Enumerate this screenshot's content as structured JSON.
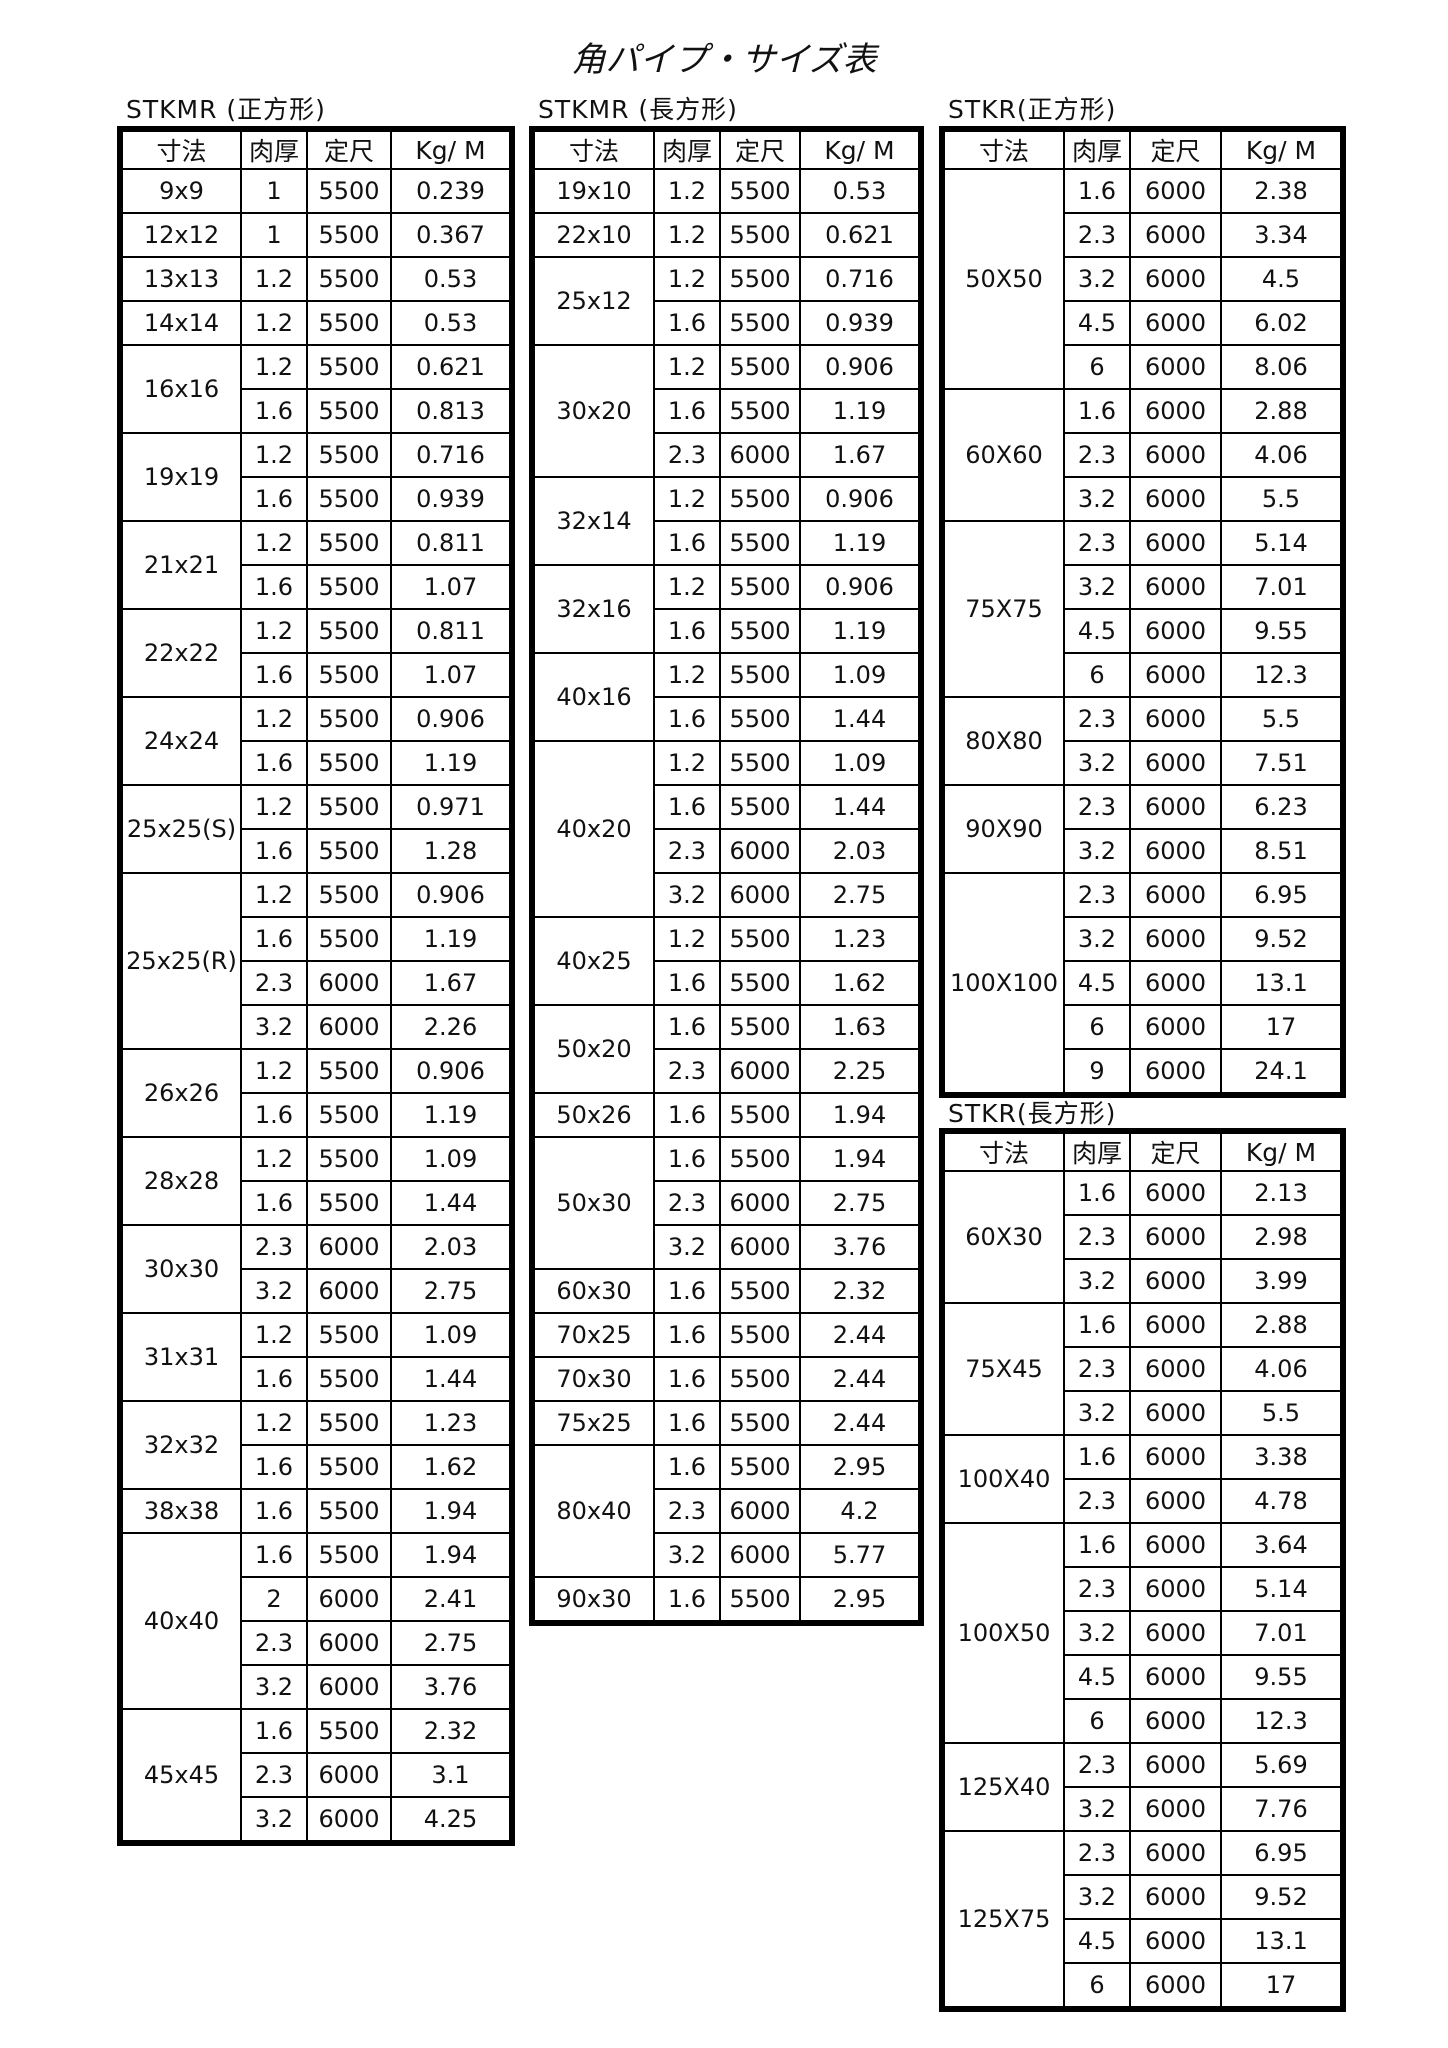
{
  "title": "角パイプ・サイズ表",
  "headers": [
    "寸法",
    "肉厚",
    "定尺",
    "Kg/ M"
  ],
  "tables": [
    {
      "label": "STKMR (正方形)",
      "groups": [
        {
          "size": "9x9",
          "rows": [
            [
              "1",
              "5500",
              "0.239"
            ]
          ]
        },
        {
          "size": "12x12",
          "rows": [
            [
              "1",
              "5500",
              "0.367"
            ]
          ]
        },
        {
          "size": "13x13",
          "rows": [
            [
              "1.2",
              "5500",
              "0.53"
            ]
          ]
        },
        {
          "size": "14x14",
          "rows": [
            [
              "1.2",
              "5500",
              "0.53"
            ]
          ]
        },
        {
          "size": "16x16",
          "rows": [
            [
              "1.2",
              "5500",
              "0.621"
            ],
            [
              "1.6",
              "5500",
              "0.813"
            ]
          ]
        },
        {
          "size": "19x19",
          "rows": [
            [
              "1.2",
              "5500",
              "0.716"
            ],
            [
              "1.6",
              "5500",
              "0.939"
            ]
          ]
        },
        {
          "size": "21x21",
          "rows": [
            [
              "1.2",
              "5500",
              "0.811"
            ],
            [
              "1.6",
              "5500",
              "1.07"
            ]
          ]
        },
        {
          "size": "22x22",
          "rows": [
            [
              "1.2",
              "5500",
              "0.811"
            ],
            [
              "1.6",
              "5500",
              "1.07"
            ]
          ]
        },
        {
          "size": "24x24",
          "rows": [
            [
              "1.2",
              "5500",
              "0.906"
            ],
            [
              "1.6",
              "5500",
              "1.19"
            ]
          ]
        },
        {
          "size": "25x25(S)",
          "rows": [
            [
              "1.2",
              "5500",
              "0.971"
            ],
            [
              "1.6",
              "5500",
              "1.28"
            ]
          ]
        },
        {
          "size": "25x25(R)",
          "rows": [
            [
              "1.2",
              "5500",
              "0.906"
            ],
            [
              "1.6",
              "5500",
              "1.19"
            ],
            [
              "2.3",
              "6000",
              "1.67"
            ],
            [
              "3.2",
              "6000",
              "2.26"
            ]
          ]
        },
        {
          "size": "26x26",
          "rows": [
            [
              "1.2",
              "5500",
              "0.906"
            ],
            [
              "1.6",
              "5500",
              "1.19"
            ]
          ]
        },
        {
          "size": "28x28",
          "rows": [
            [
              "1.2",
              "5500",
              "1.09"
            ],
            [
              "1.6",
              "5500",
              "1.44"
            ]
          ]
        },
        {
          "size": "30x30",
          "rows": [
            [
              "2.3",
              "6000",
              "2.03"
            ],
            [
              "3.2",
              "6000",
              "2.75"
            ]
          ]
        },
        {
          "size": "31x31",
          "rows": [
            [
              "1.2",
              "5500",
              "1.09"
            ],
            [
              "1.6",
              "5500",
              "1.44"
            ]
          ]
        },
        {
          "size": "32x32",
          "rows": [
            [
              "1.2",
              "5500",
              "1.23"
            ],
            [
              "1.6",
              "5500",
              "1.62"
            ]
          ]
        },
        {
          "size": "38x38",
          "rows": [
            [
              "1.6",
              "5500",
              "1.94"
            ]
          ]
        },
        {
          "size": "40x40",
          "rows": [
            [
              "1.6",
              "5500",
              "1.94"
            ],
            [
              "2",
              "6000",
              "2.41"
            ],
            [
              "2.3",
              "6000",
              "2.75"
            ],
            [
              "3.2",
              "6000",
              "3.76"
            ]
          ]
        },
        {
          "size": "45x45",
          "rows": [
            [
              "1.6",
              "5500",
              "2.32"
            ],
            [
              "2.3",
              "6000",
              "3.1"
            ],
            [
              "3.2",
              "6000",
              "4.25"
            ]
          ]
        }
      ]
    },
    {
      "label": "STKMR (長方形)",
      "groups": [
        {
          "size": "19x10",
          "rows": [
            [
              "1.2",
              "5500",
              "0.53"
            ]
          ]
        },
        {
          "size": "22x10",
          "rows": [
            [
              "1.2",
              "5500",
              "0.621"
            ]
          ]
        },
        {
          "size": "25x12",
          "rows": [
            [
              "1.2",
              "5500",
              "0.716"
            ],
            [
              "1.6",
              "5500",
              "0.939"
            ]
          ]
        },
        {
          "size": "30x20",
          "rows": [
            [
              "1.2",
              "5500",
              "0.906"
            ],
            [
              "1.6",
              "5500",
              "1.19"
            ],
            [
              "2.3",
              "6000",
              "1.67"
            ]
          ]
        },
        {
          "size": "32x14",
          "rows": [
            [
              "1.2",
              "5500",
              "0.906"
            ],
            [
              "1.6",
              "5500",
              "1.19"
            ]
          ]
        },
        {
          "size": "32x16",
          "rows": [
            [
              "1.2",
              "5500",
              "0.906"
            ],
            [
              "1.6",
              "5500",
              "1.19"
            ]
          ]
        },
        {
          "size": "40x16",
          "rows": [
            [
              "1.2",
              "5500",
              "1.09"
            ],
            [
              "1.6",
              "5500",
              "1.44"
            ]
          ]
        },
        {
          "size": "40x20",
          "rows": [
            [
              "1.2",
              "5500",
              "1.09"
            ],
            [
              "1.6",
              "5500",
              "1.44"
            ],
            [
              "2.3",
              "6000",
              "2.03"
            ],
            [
              "3.2",
              "6000",
              "2.75"
            ]
          ]
        },
        {
          "size": "40x25",
          "rows": [
            [
              "1.2",
              "5500",
              "1.23"
            ],
            [
              "1.6",
              "5500",
              "1.62"
            ]
          ]
        },
        {
          "size": "50x20",
          "rows": [
            [
              "1.6",
              "5500",
              "1.63"
            ],
            [
              "2.3",
              "6000",
              "2.25"
            ]
          ]
        },
        {
          "size": "50x26",
          "rows": [
            [
              "1.6",
              "5500",
              "1.94"
            ]
          ]
        },
        {
          "size": "50x30",
          "rows": [
            [
              "1.6",
              "5500",
              "1.94"
            ],
            [
              "2.3",
              "6000",
              "2.75"
            ],
            [
              "3.2",
              "6000",
              "3.76"
            ]
          ]
        },
        {
          "size": "60x30",
          "rows": [
            [
              "1.6",
              "5500",
              "2.32"
            ]
          ]
        },
        {
          "size": "70x25",
          "rows": [
            [
              "1.6",
              "5500",
              "2.44"
            ]
          ]
        },
        {
          "size": "70x30",
          "rows": [
            [
              "1.6",
              "5500",
              "2.44"
            ]
          ]
        },
        {
          "size": "75x25",
          "rows": [
            [
              "1.6",
              "5500",
              "2.44"
            ]
          ]
        },
        {
          "size": "80x40",
          "rows": [
            [
              "1.6",
              "5500",
              "2.95"
            ],
            [
              "2.3",
              "6000",
              "4.2"
            ],
            [
              "3.2",
              "6000",
              "5.77"
            ]
          ]
        },
        {
          "size": "90x30",
          "rows": [
            [
              "1.6",
              "5500",
              "2.95"
            ]
          ]
        }
      ]
    },
    {
      "label": "STKR(正方形)",
      "groups": [
        {
          "size": "50X50",
          "rows": [
            [
              "1.6",
              "6000",
              "2.38"
            ],
            [
              "2.3",
              "6000",
              "3.34"
            ],
            [
              "3.2",
              "6000",
              "4.5"
            ],
            [
              "4.5",
              "6000",
              "6.02"
            ],
            [
              "6",
              "6000",
              "8.06"
            ]
          ]
        },
        {
          "size": "60X60",
          "rows": [
            [
              "1.6",
              "6000",
              "2.88"
            ],
            [
              "2.3",
              "6000",
              "4.06"
            ],
            [
              "3.2",
              "6000",
              "5.5"
            ]
          ]
        },
        {
          "size": "75X75",
          "rows": [
            [
              "2.3",
              "6000",
              "5.14"
            ],
            [
              "3.2",
              "6000",
              "7.01"
            ],
            [
              "4.5",
              "6000",
              "9.55"
            ],
            [
              "6",
              "6000",
              "12.3"
            ]
          ]
        },
        {
          "size": "80X80",
          "rows": [
            [
              "2.3",
              "6000",
              "5.5"
            ],
            [
              "3.2",
              "6000",
              "7.51"
            ]
          ]
        },
        {
          "size": "90X90",
          "rows": [
            [
              "2.3",
              "6000",
              "6.23"
            ],
            [
              "3.2",
              "6000",
              "8.51"
            ]
          ]
        },
        {
          "size": "100X100",
          "rows": [
            [
              "2.3",
              "6000",
              "6.95"
            ],
            [
              "3.2",
              "6000",
              "9.52"
            ],
            [
              "4.5",
              "6000",
              "13.1"
            ],
            [
              "6",
              "6000",
              "17"
            ],
            [
              "9",
              "6000",
              "24.1"
            ]
          ]
        }
      ]
    },
    {
      "label": "STKR(長方形)",
      "groups": [
        {
          "size": "60X30",
          "rows": [
            [
              "1.6",
              "6000",
              "2.13"
            ],
            [
              "2.3",
              "6000",
              "2.98"
            ],
            [
              "3.2",
              "6000",
              "3.99"
            ]
          ]
        },
        {
          "size": "75X45",
          "rows": [
            [
              "1.6",
              "6000",
              "2.88"
            ],
            [
              "2.3",
              "6000",
              "4.06"
            ],
            [
              "3.2",
              "6000",
              "5.5"
            ]
          ]
        },
        {
          "size": "100X40",
          "rows": [
            [
              "1.6",
              "6000",
              "3.38"
            ],
            [
              "2.3",
              "6000",
              "4.78"
            ]
          ]
        },
        {
          "size": "100X50",
          "rows": [
            [
              "1.6",
              "6000",
              "3.64"
            ],
            [
              "2.3",
              "6000",
              "5.14"
            ],
            [
              "3.2",
              "6000",
              "7.01"
            ],
            [
              "4.5",
              "6000",
              "9.55"
            ],
            [
              "6",
              "6000",
              "12.3"
            ]
          ]
        },
        {
          "size": "125X40",
          "rows": [
            [
              "2.3",
              "6000",
              "5.69"
            ],
            [
              "3.2",
              "6000",
              "7.76"
            ]
          ]
        },
        {
          "size": "125X75",
          "rows": [
            [
              "2.3",
              "6000",
              "6.95"
            ],
            [
              "3.2",
              "6000",
              "9.52"
            ],
            [
              "4.5",
              "6000",
              "13.1"
            ],
            [
              "6",
              "6000",
              "17"
            ]
          ]
        }
      ]
    }
  ]
}
